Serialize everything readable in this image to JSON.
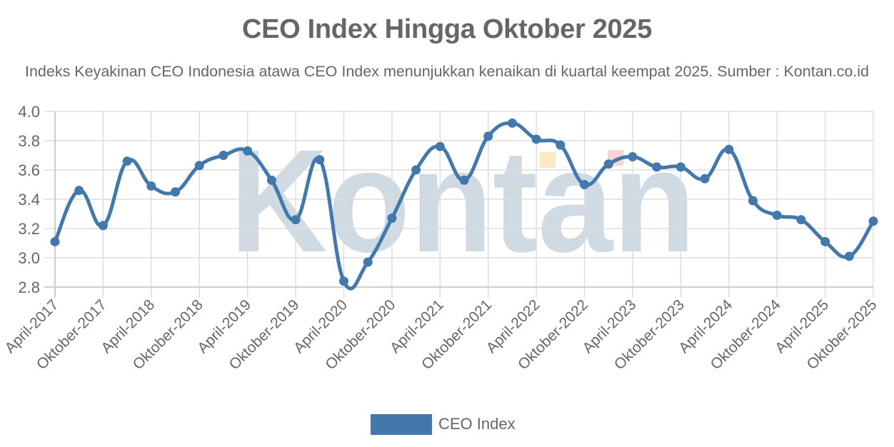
{
  "header": {
    "title": "CEO Index Hingga Oktober 2025",
    "subtitle": "Indeks Keyakinan CEO Indonesia atawa CEO Index menunjukkan kenaikan di kuartal keempat 2025. Sumber : Kontan.co.id"
  },
  "watermark": {
    "text": "Kontan",
    "color": "#cfdae2",
    "accent_colors": [
      "#fde9c2",
      "#f9d4d6"
    ]
  },
  "legend": {
    "label": "CEO Index",
    "color": "#4278ac"
  },
  "colors": {
    "line": "#4278ac",
    "grid": "#dddddd",
    "text": "#666666"
  },
  "chart_data": {
    "type": "line",
    "title": "CEO Index Hingga Oktober 2025",
    "subtitle": "Indeks Keyakinan CEO Indonesia atawa CEO Index menunjukkan kenaikan di kuartal keempat 2025. Sumber : Kontan.co.id",
    "xlabel": "",
    "ylabel": "",
    "ylim": [
      2.8,
      4.0
    ],
    "yticks": [
      2.8,
      3.0,
      3.2,
      3.4,
      3.6,
      3.8,
      4.0
    ],
    "grid": true,
    "legend_position": "bottom",
    "x_tick_labels": [
      "April-2017",
      "Oktober-2017",
      "April-2018",
      "Oktober-2018",
      "April-2019",
      "Oktober-2019",
      "April-2020",
      "Oktober-2020",
      "April-2021",
      "Oktober-2021",
      "April-2022",
      "Oktober-2022",
      "April-2023",
      "Oktober-2023",
      "April-2024",
      "Oktober-2024",
      "April-2025",
      "Oktober-2025"
    ],
    "x_tick_every": 2,
    "series": [
      {
        "name": "CEO Index",
        "color": "#4278ac",
        "values": [
          3.11,
          3.46,
          3.22,
          3.66,
          3.49,
          3.45,
          3.63,
          3.7,
          3.73,
          3.53,
          3.26,
          3.67,
          2.84,
          2.97,
          3.27,
          3.6,
          3.76,
          3.53,
          3.83,
          3.92,
          3.81,
          3.77,
          3.5,
          3.64,
          3.69,
          3.62,
          3.62,
          3.54,
          3.74,
          3.39,
          3.29,
          3.26,
          3.11,
          3.01,
          3.25
        ]
      }
    ]
  }
}
